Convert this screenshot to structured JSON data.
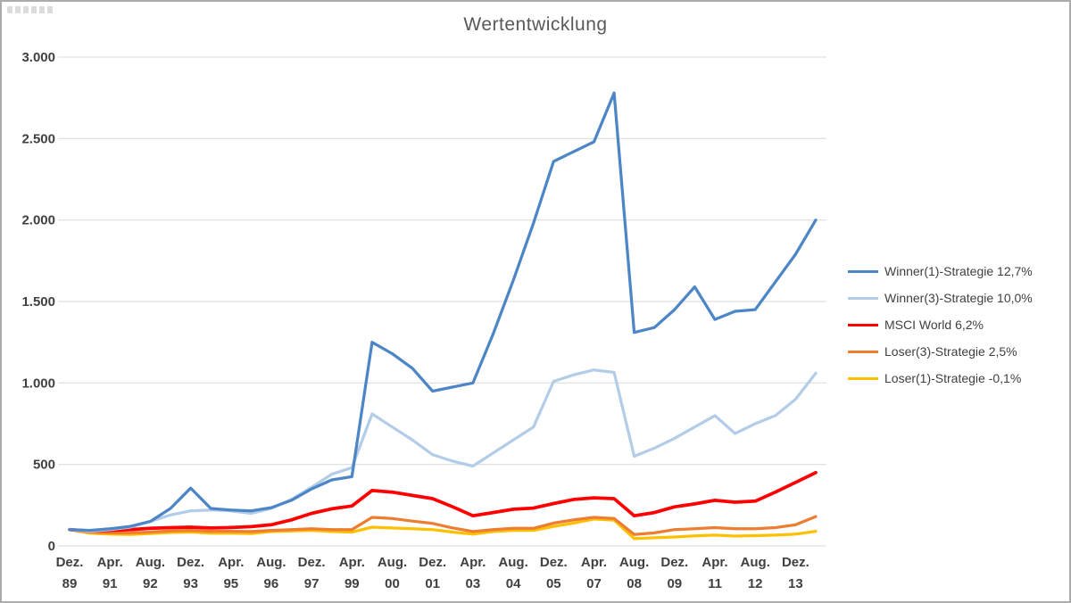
{
  "chart_data": {
    "type": "line",
    "title": "Wertentwicklung",
    "ylim": [
      0,
      3000
    ],
    "grid": true,
    "grid_color": "#d9d9d9",
    "legend_position": "right",
    "n_points": 38,
    "y_ticks": [
      {
        "v": 0,
        "label": "0"
      },
      {
        "v": 500,
        "label": "500"
      },
      {
        "v": 1000,
        "label": "1.000"
      },
      {
        "v": 1500,
        "label": "1.500"
      },
      {
        "v": 2000,
        "label": "2.000"
      },
      {
        "v": 2500,
        "label": "2.500"
      },
      {
        "v": 3000,
        "label": "3.000"
      }
    ],
    "x_labels": [
      [
        "Dez.",
        "89"
      ],
      [
        "Apr.",
        "91"
      ],
      [
        "Aug.",
        "92"
      ],
      [
        "Dez.",
        "93"
      ],
      [
        "Apr.",
        "95"
      ],
      [
        "Aug.",
        "96"
      ],
      [
        "Dez.",
        "97"
      ],
      [
        "Apr.",
        "99"
      ],
      [
        "Aug.",
        "00"
      ],
      [
        "Dez.",
        "01"
      ],
      [
        "Apr.",
        "03"
      ],
      [
        "Aug.",
        "04"
      ],
      [
        "Dez.",
        "05"
      ],
      [
        "Apr.",
        "07"
      ],
      [
        "Aug.",
        "08"
      ],
      [
        "Dez.",
        "09"
      ],
      [
        "Apr.",
        "11"
      ],
      [
        "Aug.",
        "12"
      ],
      [
        "Dez.",
        "13"
      ]
    ],
    "label_indices": [
      0,
      2,
      4,
      6,
      8,
      10,
      12,
      14,
      16,
      18,
      20,
      22,
      24,
      26,
      28,
      30,
      32,
      34,
      36
    ],
    "series": [
      {
        "id": "winner1",
        "name": "Winner(1)-Strategie 12,7%",
        "color": "#4d86c6",
        "width": 3.25,
        "values": [
          100,
          95,
          105,
          120,
          150,
          230,
          355,
          230,
          220,
          215,
          235,
          280,
          350,
          405,
          425,
          1250,
          1180,
          1090,
          950,
          975,
          1000,
          1300,
          1630,
          1980,
          2360,
          2420,
          2480,
          2780,
          1310,
          1340,
          1450,
          1590,
          1390,
          1440,
          1450,
          1620,
          1790,
          2000
        ]
      },
      {
        "id": "winner3",
        "name": "Winner(3)-Strategie 10,0%",
        "color": "#b3cde8",
        "width": 3.25,
        "values": [
          100,
          90,
          100,
          115,
          150,
          190,
          215,
          220,
          215,
          200,
          230,
          285,
          360,
          440,
          480,
          810,
          730,
          650,
          560,
          520,
          490,
          570,
          650,
          730,
          1010,
          1050,
          1080,
          1065,
          550,
          600,
          660,
          730,
          800,
          690,
          750,
          800,
          900,
          1060
        ]
      },
      {
        "id": "msci-world",
        "name": "MSCI World 6,2%",
        "color": "#ff0000",
        "width": 3.75,
        "values": [
          100,
          92,
          95,
          100,
          108,
          112,
          115,
          110,
          113,
          118,
          130,
          160,
          200,
          228,
          245,
          340,
          330,
          310,
          290,
          240,
          185,
          205,
          225,
          232,
          260,
          285,
          295,
          290,
          185,
          205,
          240,
          258,
          280,
          268,
          275,
          330,
          390,
          450
        ]
      },
      {
        "id": "loser3",
        "name": "Loser(3)-Strategie 2,5%",
        "color": "#ed7d31",
        "width": 3.25,
        "values": [
          100,
          85,
          80,
          80,
          85,
          92,
          95,
          90,
          90,
          88,
          95,
          100,
          105,
          100,
          100,
          175,
          168,
          152,
          138,
          110,
          88,
          100,
          108,
          108,
          140,
          160,
          175,
          168,
          70,
          80,
          100,
          105,
          112,
          105,
          105,
          112,
          130,
          180
        ]
      },
      {
        "id": "loser1",
        "name": "Loser(1)-Strategie -0,1%",
        "color": "#ffc000",
        "width": 3.25,
        "values": [
          100,
          78,
          72,
          70,
          76,
          82,
          85,
          78,
          78,
          76,
          88,
          92,
          95,
          88,
          85,
          115,
          110,
          105,
          100,
          85,
          72,
          88,
          95,
          95,
          120,
          140,
          165,
          158,
          45,
          50,
          55,
          62,
          66,
          60,
          63,
          66,
          72,
          90
        ]
      }
    ]
  }
}
